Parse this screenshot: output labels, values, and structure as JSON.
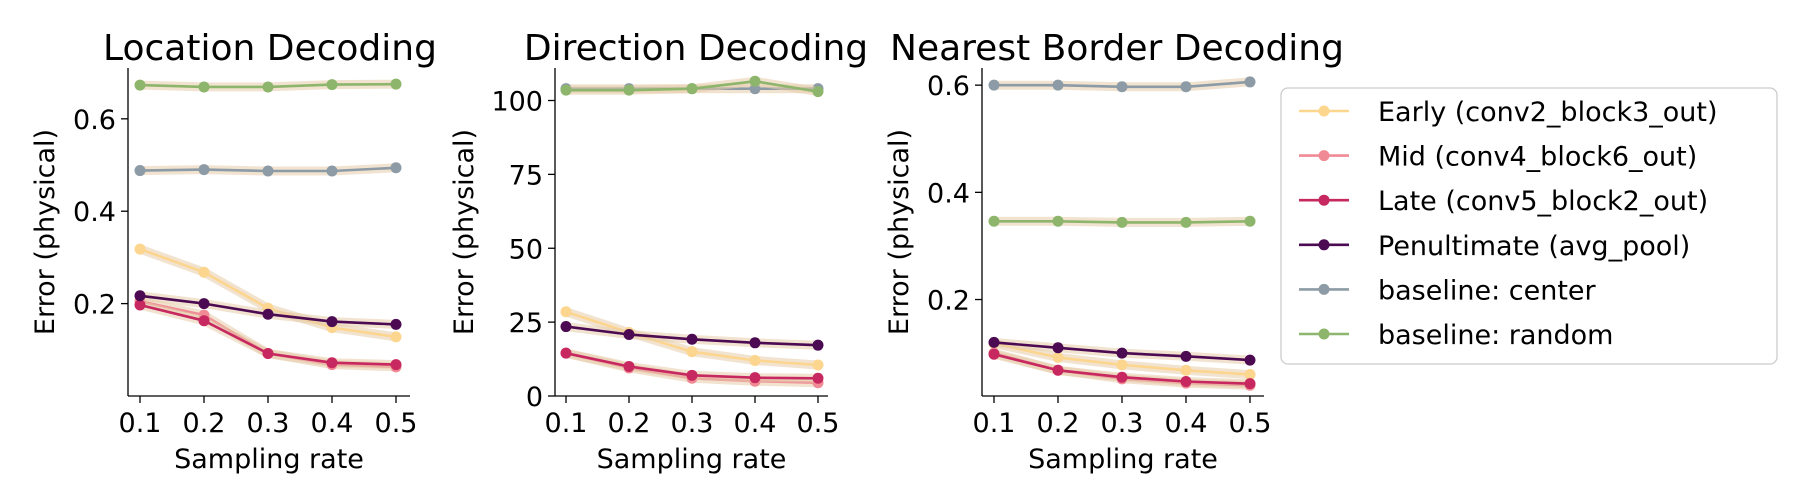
{
  "chart_data": [
    {
      "type": "line",
      "title": "Location Decoding",
      "xlabel": "Sampling rate",
      "ylabel": "Error (physical)",
      "x": [
        0.1,
        0.2,
        0.3,
        0.4,
        0.5
      ],
      "xticks": [
        "0.1",
        "0.2",
        "0.3",
        "0.4",
        "0.5"
      ],
      "ylim": [
        0.0,
        0.71
      ],
      "yticks": [
        0.2,
        0.4,
        0.6
      ],
      "ytick_labels": [
        "0.2",
        "0.4",
        "0.6"
      ],
      "series": [
        {
          "name": "Early (conv2_block3_out)",
          "values": [
            0.318,
            0.268,
            0.19,
            0.148,
            0.128
          ]
        },
        {
          "name": "Mid (conv4_block6_out)",
          "values": [
            0.205,
            0.175,
            0.092,
            0.068,
            0.063
          ]
        },
        {
          "name": "Late (conv5_block2_out)",
          "values": [
            0.197,
            0.163,
            0.092,
            0.072,
            0.068
          ]
        },
        {
          "name": "Penultimate (avg_pool)",
          "values": [
            0.217,
            0.2,
            0.177,
            0.161,
            0.155
          ]
        },
        {
          "name": "baseline: center",
          "values": [
            0.488,
            0.49,
            0.487,
            0.487,
            0.494
          ]
        },
        {
          "name": "baseline: random",
          "values": [
            0.673,
            0.669,
            0.669,
            0.674,
            0.675
          ]
        }
      ]
    },
    {
      "type": "line",
      "title": "Direction Decoding",
      "xlabel": "Sampling rate",
      "ylabel": "Error (physical)",
      "x": [
        0.1,
        0.2,
        0.3,
        0.4,
        0.5
      ],
      "xticks": [
        "0.1",
        "0.2",
        "0.3",
        "0.4",
        "0.5"
      ],
      "ylim": [
        0,
        111
      ],
      "yticks": [
        0,
        25,
        50,
        75,
        100
      ],
      "ytick_labels": [
        "0",
        "25",
        "50",
        "75",
        "100"
      ],
      "series": [
        {
          "name": "Early (conv2_block3_out)",
          "values": [
            28.5,
            21.5,
            15.0,
            12.0,
            10.5
          ]
        },
        {
          "name": "Mid (conv4_block6_out)",
          "values": [
            14.5,
            9.5,
            6.0,
            5.0,
            4.5
          ]
        },
        {
          "name": "Late (conv5_block2_out)",
          "values": [
            14.5,
            10.0,
            7.0,
            6.2,
            6.0
          ]
        },
        {
          "name": "Penultimate (avg_pool)",
          "values": [
            23.5,
            20.8,
            19.2,
            18.0,
            17.2
          ]
        },
        {
          "name": "baseline: center",
          "values": [
            104.0,
            104.0,
            104.0,
            104.0,
            104.0
          ]
        },
        {
          "name": "baseline: random",
          "values": [
            103.5,
            103.5,
            104.0,
            106.5,
            103.0
          ]
        }
      ]
    },
    {
      "type": "line",
      "title": "Nearest Border Decoding",
      "xlabel": "Sampling rate",
      "ylabel": "Error (physical)",
      "x": [
        0.1,
        0.2,
        0.3,
        0.4,
        0.5
      ],
      "xticks": [
        "0.1",
        "0.2",
        "0.3",
        "0.4",
        "0.5"
      ],
      "ylim": [
        0.02,
        0.632
      ],
      "yticks": [
        0.2,
        0.4,
        0.6
      ],
      "ytick_labels": [
        "0.2",
        "0.4",
        "0.6"
      ],
      "series": [
        {
          "name": "Early (conv2_block3_out)",
          "values": [
            0.118,
            0.092,
            0.078,
            0.068,
            0.06
          ]
        },
        {
          "name": "Mid (conv4_block6_out)",
          "values": [
            0.1,
            0.068,
            0.052,
            0.044,
            0.04
          ]
        },
        {
          "name": "Late (conv5_block2_out)",
          "values": [
            0.098,
            0.068,
            0.055,
            0.047,
            0.043
          ]
        },
        {
          "name": "Penultimate (avg_pool)",
          "values": [
            0.12,
            0.11,
            0.1,
            0.094,
            0.087
          ]
        },
        {
          "name": "baseline: center",
          "values": [
            0.6,
            0.6,
            0.597,
            0.597,
            0.606
          ]
        },
        {
          "name": "baseline: random",
          "values": [
            0.346,
            0.346,
            0.344,
            0.344,
            0.346
          ]
        }
      ]
    }
  ],
  "legend": {
    "placement": "right",
    "entries": [
      {
        "label": "Early (conv2_block3_out)",
        "color": "#fcd58e"
      },
      {
        "label": "Mid (conv4_block6_out)",
        "color": "#f08a94"
      },
      {
        "label": "Late (conv5_block2_out)",
        "color": "#c6285f"
      },
      {
        "label": "Penultimate (avg_pool)",
        "color": "#4b0a52"
      },
      {
        "label": "baseline: center",
        "color": "#8c9ba5"
      },
      {
        "label": "baseline: random",
        "color": "#8db56b"
      }
    ]
  },
  "colors": {
    "band": "#e6ccaa",
    "frame": "#cccccc"
  }
}
